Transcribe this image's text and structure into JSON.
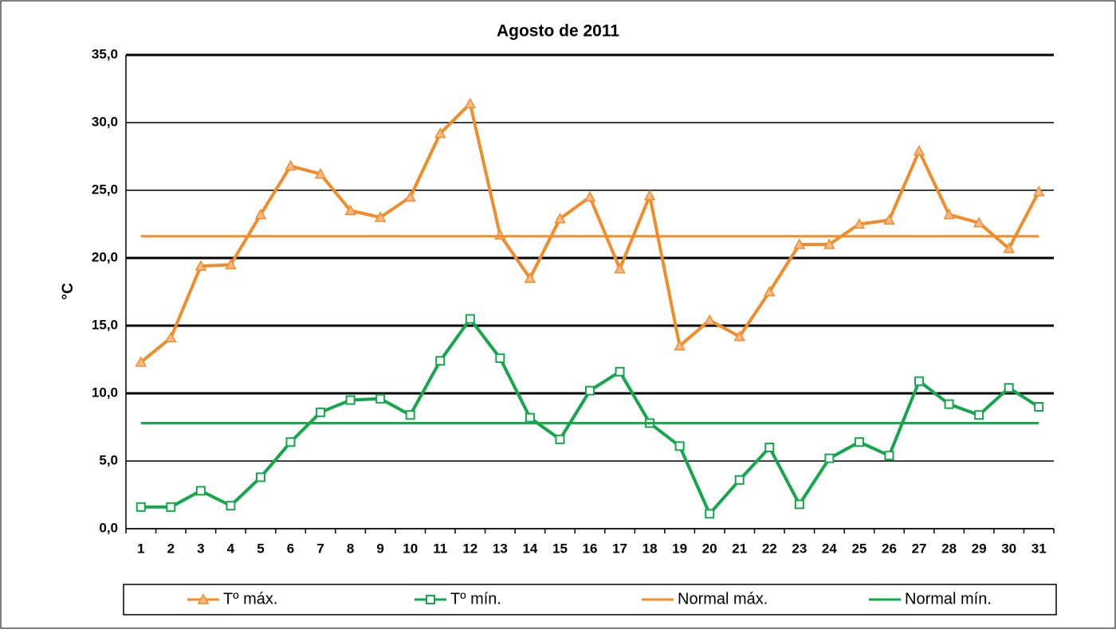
{
  "chart_data": {
    "type": "line",
    "title": "Agosto de 2011",
    "y_label": "°C",
    "categories": [
      "1",
      "2",
      "3",
      "4",
      "5",
      "6",
      "7",
      "8",
      "9",
      "10",
      "11",
      "12",
      "13",
      "14",
      "15",
      "16",
      "17",
      "18",
      "19",
      "20",
      "21",
      "22",
      "23",
      "24",
      "25",
      "26",
      "27",
      "28",
      "29",
      "30",
      "31"
    ],
    "ylim": [
      0,
      35
    ],
    "yticks": [
      {
        "value": 0,
        "label": "0,0"
      },
      {
        "value": 5,
        "label": "5,0"
      },
      {
        "value": 10,
        "label": "10,0"
      },
      {
        "value": 15,
        "label": "15,0"
      },
      {
        "value": 20,
        "label": "20,0"
      },
      {
        "value": 25,
        "label": "25,0"
      },
      {
        "value": 30,
        "label": "30,0"
      },
      {
        "value": 35,
        "label": "35,0"
      }
    ],
    "grid": true,
    "series": [
      {
        "name": "Tº máx.",
        "color": "#f28c28",
        "marker": "triangle",
        "values": [
          12.3,
          14.1,
          19.4,
          19.5,
          23.2,
          26.8,
          26.2,
          23.5,
          23.0,
          24.5,
          29.2,
          31.4,
          21.7,
          18.5,
          22.9,
          24.5,
          19.2,
          24.6,
          13.5,
          15.4,
          14.2,
          17.5,
          21.0,
          21.0,
          22.5,
          22.8,
          27.9,
          23.2,
          22.6,
          20.7,
          24.9
        ]
      },
      {
        "name": "Tº mín.",
        "color": "#12a84a",
        "marker": "square",
        "values": [
          1.6,
          1.6,
          2.8,
          1.7,
          3.8,
          6.4,
          8.6,
          9.5,
          9.6,
          8.4,
          12.4,
          15.5,
          12.6,
          8.2,
          6.6,
          10.2,
          11.6,
          7.8,
          6.1,
          1.1,
          3.6,
          6.0,
          1.8,
          5.2,
          6.4,
          5.4,
          10.9,
          9.2,
          8.4,
          10.4,
          9.0
        ]
      },
      {
        "name": "Normal máx.",
        "color": "#f28c28",
        "marker": "none",
        "values": [
          21.6,
          21.6,
          21.6,
          21.6,
          21.6,
          21.6,
          21.6,
          21.6,
          21.6,
          21.6,
          21.6,
          21.6,
          21.6,
          21.6,
          21.6,
          21.6,
          21.6,
          21.6,
          21.6,
          21.6,
          21.6,
          21.6,
          21.6,
          21.6,
          21.6,
          21.6,
          21.6,
          21.6,
          21.6,
          21.6,
          21.6
        ]
      },
      {
        "name": "Normal mín.",
        "color": "#12a84a",
        "marker": "none",
        "values": [
          7.8,
          7.8,
          7.8,
          7.8,
          7.8,
          7.8,
          7.8,
          7.8,
          7.8,
          7.8,
          7.8,
          7.8,
          7.8,
          7.8,
          7.8,
          7.8,
          7.8,
          7.8,
          7.8,
          7.8,
          7.8,
          7.8,
          7.8,
          7.8,
          7.8,
          7.8,
          7.8,
          7.8,
          7.8,
          7.8,
          7.8
        ]
      }
    ]
  }
}
